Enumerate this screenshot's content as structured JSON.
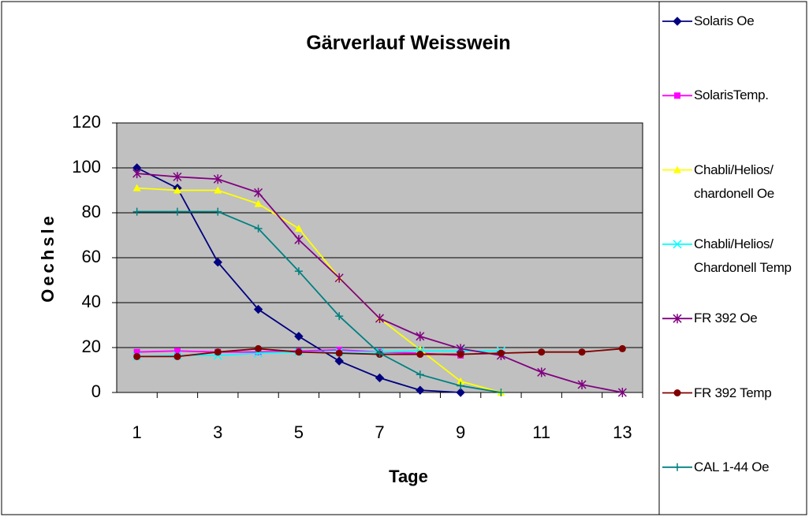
{
  "chart_data": {
    "type": "line",
    "title": "Gärverlauf Weisswein",
    "x_label": "Tage",
    "y_label": "Oechsle",
    "categories": [
      1,
      null,
      3,
      null,
      5,
      null,
      7,
      null,
      9,
      null,
      11,
      null,
      13
    ],
    "ylim": [
      0,
      120
    ],
    "yticks": [
      0,
      20,
      40,
      60,
      80,
      100,
      120
    ],
    "grid": true,
    "legend": "right",
    "series": [
      {
        "name": "Solaris Oe",
        "color": "#000080",
        "marker": "diamond",
        "values": [
          100,
          91,
          58,
          37,
          25,
          14,
          6.5,
          1,
          0,
          null,
          null,
          null,
          null
        ]
      },
      {
        "name": "SolarisTemp.",
        "color": "#ff00ff",
        "marker": "square",
        "values": [
          18,
          18.5,
          18,
          18,
          18.5,
          19,
          18,
          17.5,
          16.5,
          null,
          null,
          null,
          null
        ]
      },
      {
        "name": "Chabli/Helios/ chardonell Oe",
        "color": "#ffff00",
        "marker": "triangle",
        "values": [
          91,
          90,
          90,
          84,
          73,
          51,
          33,
          19,
          5,
          0,
          null,
          null,
          null
        ]
      },
      {
        "name": "Chabli/Helios/ Chardonell Temp",
        "color": "#00ffff",
        "marker": "x",
        "values": [
          16,
          16.5,
          16.5,
          17.5,
          18,
          18,
          18,
          18.5,
          18.5,
          18.5,
          null,
          null,
          null
        ]
      },
      {
        "name": "FR 392 Oe",
        "color": "#800080",
        "marker": "star",
        "values": [
          97.5,
          96,
          95,
          89,
          68,
          51,
          33,
          25,
          19.5,
          16.5,
          9,
          3.5,
          0
        ]
      },
      {
        "name": "FR 392 Temp",
        "color": "#800000",
        "marker": "circle",
        "values": [
          16,
          16,
          18,
          19.5,
          18,
          17.5,
          17,
          17,
          17,
          17.5,
          18,
          18,
          19.5
        ]
      },
      {
        "name": "CAL 1-44 Oe",
        "color": "#008080",
        "marker": "plus",
        "values": [
          80.5,
          80.5,
          80.5,
          73,
          54,
          34,
          17.5,
          8,
          3,
          0,
          null,
          null,
          null
        ]
      }
    ]
  }
}
